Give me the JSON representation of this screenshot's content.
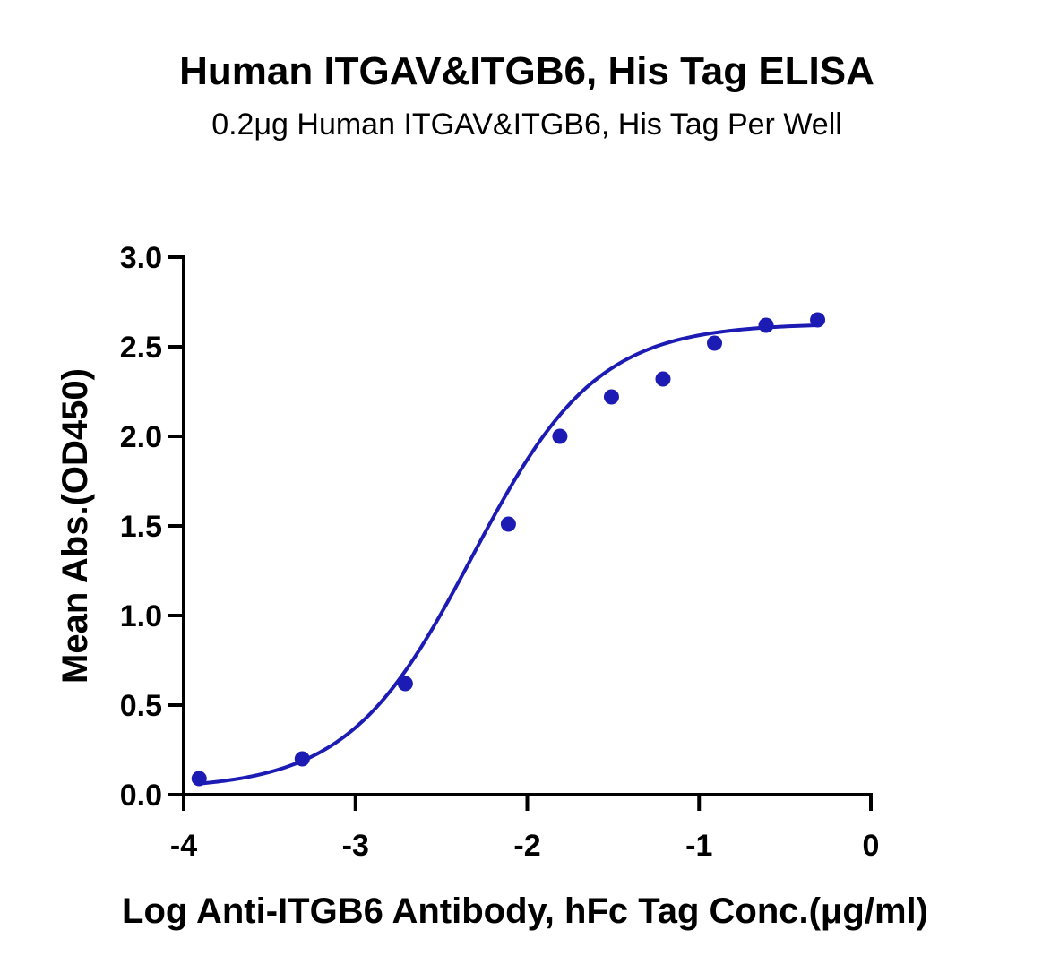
{
  "chart_data": {
    "type": "scatter",
    "title": "Human ITGAV&ITGB6, His Tag ELISA",
    "subtitle": "0.2μg Human ITGAV&ITGB6, His Tag Per Well",
    "xlabel": "Log Anti-ITGB6 Antibody, hFc Tag Conc.(μg/ml)",
    "ylabel": "Mean Abs.(OD450)",
    "xlim": [
      -4,
      0
    ],
    "ylim": [
      0,
      3.0
    ],
    "x_ticks": [
      -4,
      -3,
      -2,
      -1,
      0
    ],
    "x_tick_labels": [
      "-4",
      "-3",
      "-2",
      "-1",
      "0"
    ],
    "y_ticks": [
      0,
      0.5,
      1.0,
      1.5,
      2.0,
      2.5,
      3.0
    ],
    "y_tick_labels": [
      "0.0",
      "0.5",
      "1.0",
      "1.5",
      "2.0",
      "2.5",
      "3.0"
    ],
    "grid": false,
    "legend": "none",
    "color": "#1c1cb4",
    "series": [
      {
        "points": [
          {
            "x": -3.91,
            "y": 0.09
          },
          {
            "x": -3.31,
            "y": 0.2
          },
          {
            "x": -2.71,
            "y": 0.62
          },
          {
            "x": -2.11,
            "y": 1.51
          },
          {
            "x": -1.81,
            "y": 2.0
          },
          {
            "x": -1.51,
            "y": 2.22
          },
          {
            "x": -1.21,
            "y": 2.32
          },
          {
            "x": -0.91,
            "y": 2.52
          },
          {
            "x": -0.61,
            "y": 2.62
          },
          {
            "x": -0.31,
            "y": 2.65
          }
        ],
        "fit": {
          "model": "four-parameter logistic",
          "bottom": 0.03,
          "top": 2.63,
          "log_ec50": -2.32,
          "hill_slope": 1.2,
          "x_range": [
            -3.91,
            -0.31
          ]
        }
      }
    ]
  }
}
